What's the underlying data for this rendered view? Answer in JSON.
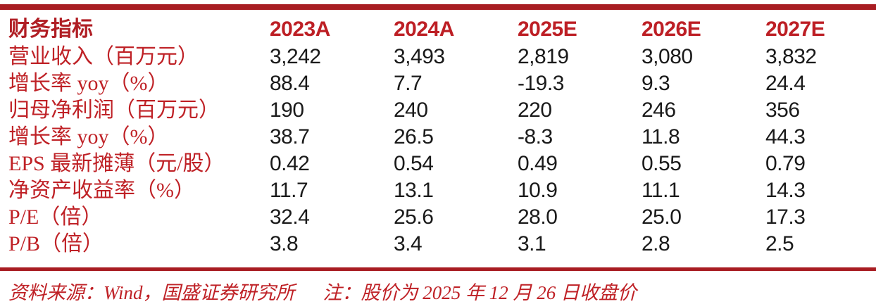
{
  "colors": {
    "rule_red": "#a81d22",
    "header_red": "#bd1f25",
    "label_red": "#bf2126",
    "value_black": "#1a1a1a",
    "background": "#ffffff"
  },
  "table": {
    "header": {
      "label": "财务指标",
      "years": [
        "2023A",
        "2024A",
        "2025E",
        "2026E",
        "2027E"
      ]
    },
    "rows": [
      {
        "label": "营业收入（百万元）",
        "values": [
          "3,242",
          "3,493",
          "2,819",
          "3,080",
          "3,832"
        ]
      },
      {
        "label": "增长率 yoy（%）",
        "values": [
          "88.4",
          "7.7",
          "-19.3",
          "9.3",
          "24.4"
        ]
      },
      {
        "label": "归母净利润（百万元）",
        "values": [
          "190",
          "240",
          "220",
          "246",
          "356"
        ]
      },
      {
        "label": "增长率 yoy（%）",
        "values": [
          "38.7",
          "26.5",
          "-8.3",
          "11.8",
          "44.3"
        ]
      },
      {
        "label": "EPS 最新摊薄（元/股）",
        "values": [
          "0.42",
          "0.54",
          "0.49",
          "0.55",
          "0.79"
        ]
      },
      {
        "label": "净资产收益率（%）",
        "values": [
          "11.7",
          "13.1",
          "10.9",
          "11.1",
          "14.3"
        ]
      },
      {
        "label": "P/E（倍）",
        "values": [
          "32.4",
          "25.6",
          "28.0",
          "25.0",
          "17.3"
        ]
      },
      {
        "label": "P/B（倍）",
        "values": [
          "3.8",
          "3.4",
          "3.1",
          "2.8",
          "2.5"
        ]
      }
    ]
  },
  "footer": {
    "source": "资料来源：Wind，国盛证券研究所",
    "note": "注：股价为 2025 年 12 月 26 日收盘价"
  }
}
